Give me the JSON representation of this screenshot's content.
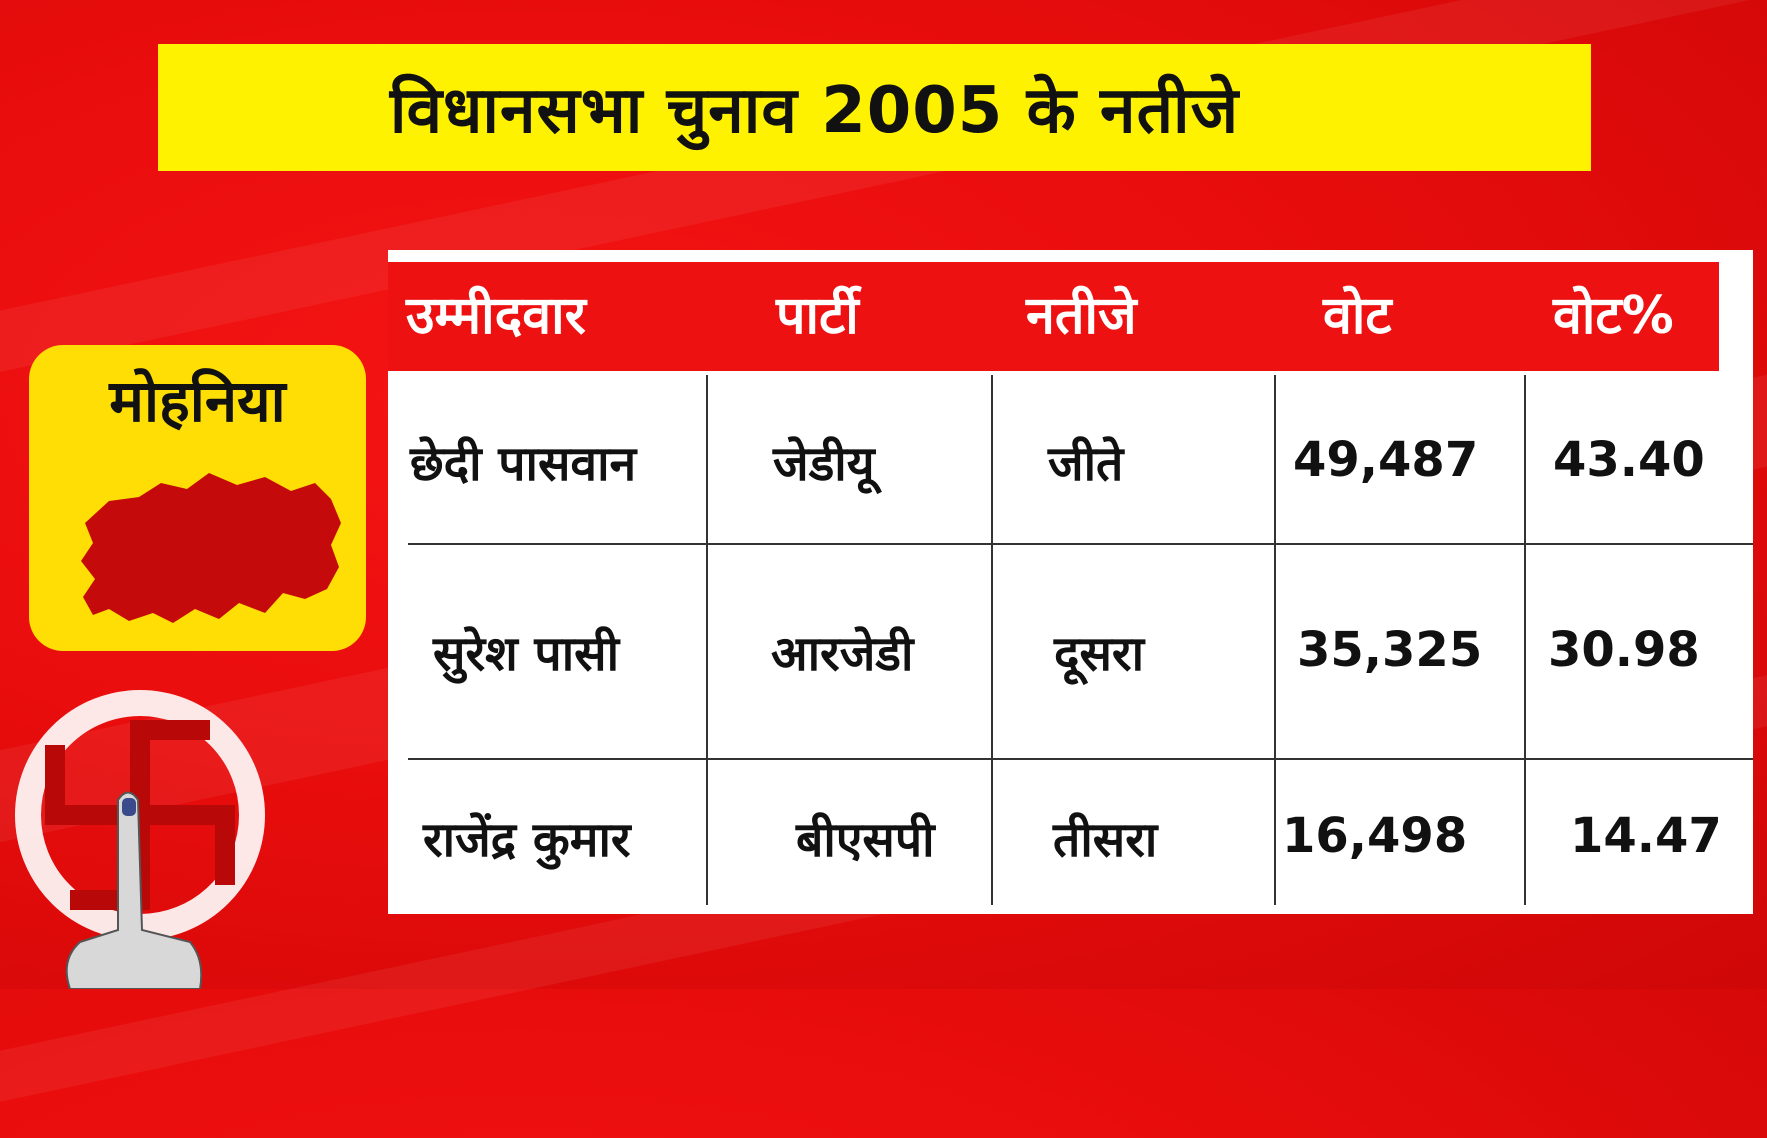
{
  "title": "विधानसभा चुनाव 2005 के नतीजे",
  "constituency": "मोहनिया",
  "table": {
    "headers": [
      "उम्मीदवार",
      "पार्टी",
      "नतीजे",
      "वोट",
      "वोट%"
    ],
    "rows": [
      [
        "छेदी पासवान",
        "जेडीयू",
        "जीते",
        "49,487",
        "43.40"
      ],
      [
        "सुरेश पासी",
        "आरजेडी",
        "दूसरा",
        "35,325",
        "30.98"
      ],
      [
        "राजेंद्र कुमार",
        "बीएसपी",
        "तीसरा",
        "16,498",
        "14.47"
      ]
    ]
  },
  "colors": {
    "background": "#e90d0d",
    "title_bar": "#fff200",
    "badge": "#ffde05",
    "map_fill": "#c40a0a",
    "table_header": "#ee1111"
  },
  "icons": [
    "constituency-map-icon",
    "election-symbol-icon"
  ]
}
